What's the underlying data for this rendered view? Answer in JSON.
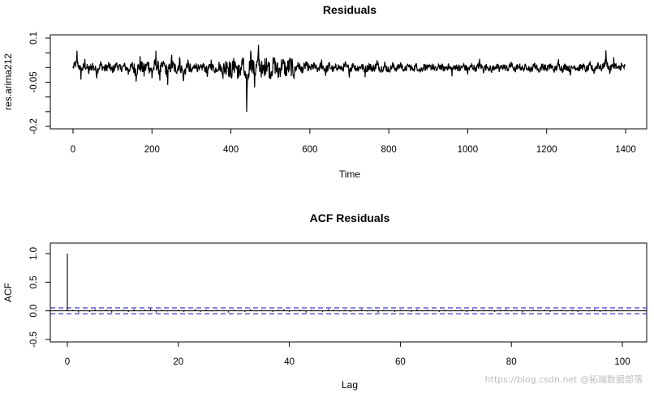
{
  "chart_data": [
    {
      "type": "line",
      "title": "Residuals",
      "xlabel": "Time",
      "ylabel": "res.arima212",
      "xlim": [
        0,
        1400
      ],
      "ylim": [
        -0.2,
        0.1
      ],
      "xticks": [
        0,
        200,
        400,
        600,
        800,
        1000,
        1200,
        1400
      ],
      "yticks": [
        0.1,
        -0.05,
        -0.2
      ],
      "yticks_all": [
        0.1,
        0.05,
        0,
        -0.05,
        -0.1,
        -0.15,
        -0.2
      ],
      "series": [
        {
          "x": [
            0,
            10,
            20,
            30,
            40,
            50,
            60,
            70,
            80,
            90,
            100,
            110,
            120,
            130,
            140,
            150,
            160,
            170,
            180,
            190,
            200,
            210,
            220,
            230,
            240,
            250,
            260,
            270,
            280,
            290,
            300,
            310,
            320,
            330,
            340,
            350,
            360,
            370,
            380,
            390,
            400,
            410,
            420,
            430,
            440,
            450,
            460,
            470,
            480,
            490,
            500,
            510,
            520,
            530,
            540,
            550,
            560,
            570,
            580,
            590,
            600,
            610,
            620,
            630,
            640,
            650,
            660,
            670,
            680,
            690,
            700,
            710,
            720,
            730,
            740,
            750,
            760,
            770,
            780,
            790,
            800,
            810,
            820,
            830,
            840,
            850,
            860,
            870,
            880,
            890,
            900,
            910,
            920,
            930,
            940,
            950,
            960,
            970,
            980,
            990,
            1000,
            1010,
            1020,
            1030,
            1040,
            1050,
            1060,
            1070,
            1080,
            1090,
            1100,
            1110,
            1120,
            1130,
            1140,
            1150,
            1160,
            1170,
            1180,
            1190,
            1200,
            1210,
            1220,
            1230,
            1240,
            1250,
            1260,
            1270,
            1280,
            1290,
            1300,
            1310,
            1320,
            1330,
            1340,
            1350,
            1360,
            1370,
            1380,
            1390,
            1400
          ],
          "values": [
            0,
            0.05,
            -0.03,
            0.02,
            -0.02,
            0.01,
            -0.03,
            0.02,
            -0.01,
            0.01,
            -0.02,
            0.02,
            -0.01,
            0.01,
            -0.02,
            0.01,
            -0.03,
            0.02,
            -0.02,
            0.03,
            -0.04,
            0.04,
            -0.03,
            0.02,
            -0.05,
            0.03,
            -0.02,
            0.03,
            -0.06,
            0.02,
            -0.03,
            0.02,
            -0.02,
            0.01,
            -0.03,
            0.02,
            -0.02,
            0.01,
            -0.03,
            0.03,
            -0.04,
            0.03,
            -0.05,
            0.04,
            -0.18,
            0.08,
            -0.05,
            0.06,
            -0.04,
            0.04,
            -0.03,
            0.03,
            -0.04,
            0.03,
            -0.02,
            0.02,
            -0.03,
            0.02,
            -0.02,
            0.02,
            -0.01,
            0.01,
            -0.02,
            0.02,
            -0.02,
            0.01,
            -0.02,
            0.01,
            -0.01,
            0.01,
            -0.02,
            0.02,
            -0.01,
            0.01,
            -0.02,
            0.01,
            -0.01,
            0.02,
            -0.01,
            0.01,
            -0.02,
            0.01,
            -0.01,
            0.02,
            -0.02,
            0.01,
            -0.01,
            0.01,
            -0.02,
            0.01,
            -0.01,
            0.01,
            -0.02,
            0.01,
            -0.01,
            0.01,
            -0.02,
            0.01,
            -0.01,
            0.01,
            -0.02,
            0.01,
            -0.01,
            0.02,
            -0.01,
            0.01,
            -0.02,
            0.01,
            -0.01,
            0.01,
            -0.01,
            0.02,
            -0.02,
            0.01,
            -0.01,
            0.01,
            -0.02,
            0.02,
            -0.02,
            0.01,
            -0.01,
            0.01,
            -0.02,
            0.02,
            -0.01,
            0.01,
            -0.02,
            0.01,
            -0.01,
            0.01,
            -0.02,
            0.01,
            -0.02,
            0.02,
            -0.01,
            0.06,
            -0.02,
            0.03,
            -0.01,
            0.01,
            0
          ]
        }
      ]
    },
    {
      "type": "bar",
      "title": "ACF Residuals",
      "xlabel": "Lag",
      "ylabel": "ACF",
      "xlim": [
        0,
        100
      ],
      "ylim": [
        -0.5,
        1.0
      ],
      "xticks": [
        0,
        20,
        40,
        60,
        80,
        100
      ],
      "yticks": [
        1.0,
        0.5,
        0.0,
        -0.5
      ],
      "confidence_band": [
        -0.052,
        0.052
      ],
      "lags": [
        0,
        1,
        2,
        3,
        4,
        5,
        6,
        7,
        8,
        9,
        10,
        11,
        12,
        13,
        14,
        15,
        16,
        17,
        18,
        19,
        20,
        21,
        22,
        23,
        24,
        25,
        26,
        27,
        28,
        29,
        30,
        31,
        32,
        33,
        34,
        35,
        36,
        37,
        38,
        39,
        40,
        41,
        42,
        43,
        44,
        45,
        46,
        47,
        48,
        49,
        50,
        51,
        52,
        53,
        54,
        55,
        56,
        57,
        58,
        59,
        60,
        61,
        62,
        63,
        64,
        65,
        66,
        67,
        68,
        69,
        70,
        71,
        72,
        73,
        74,
        75,
        76,
        77,
        78,
        79,
        80,
        81,
        82,
        83,
        84,
        85,
        86,
        87,
        88,
        89,
        90,
        91,
        92,
        93,
        94,
        95,
        96,
        97,
        98,
        99,
        100
      ],
      "values": [
        1.0,
        0.02,
        -0.03,
        0.01,
        -0.02,
        0.03,
        -0.01,
        0.02,
        -0.03,
        0.01,
        0.02,
        -0.02,
        0.03,
        -0.01,
        0.02,
        0.04,
        -0.03,
        0.02,
        -0.01,
        0.01,
        0.02,
        -0.02,
        0.01,
        0.03,
        -0.02,
        0.02,
        -0.01,
        0.02,
        0.01,
        -0.03,
        0.02,
        0.01,
        -0.02,
        0.03,
        -0.01,
        0.02,
        0.01,
        -0.02,
        0.02,
        0.03,
        -0.02,
        0.01,
        0.02,
        -0.03,
        0.02,
        0.01,
        -0.02,
        0.03,
        0.02,
        -0.01,
        0.02,
        -0.02,
        0.01,
        0.03,
        -0.01,
        0.02,
        -0.03,
        0.02,
        0.01,
        -0.02,
        0.02,
        0.01,
        -0.02,
        0.03,
        -0.01,
        0.02,
        0.01,
        -0.02,
        0.02,
        -0.01,
        0.01,
        0.02,
        -0.02,
        0.03,
        -0.01,
        0.02,
        0.01,
        -0.02,
        0.02,
        0.03,
        -0.01,
        0.02,
        -0.03,
        0.01,
        0.02,
        -0.01,
        0.02,
        -0.02,
        0.01,
        0.02,
        -0.01,
        0.02,
        -0.02,
        0.01,
        -0.01,
        0.03,
        -0.02,
        0.02,
        -0.01,
        0.02,
        0.01
      ]
    }
  ],
  "watermark": "https://blog.csdn.net @拓端数据部落"
}
